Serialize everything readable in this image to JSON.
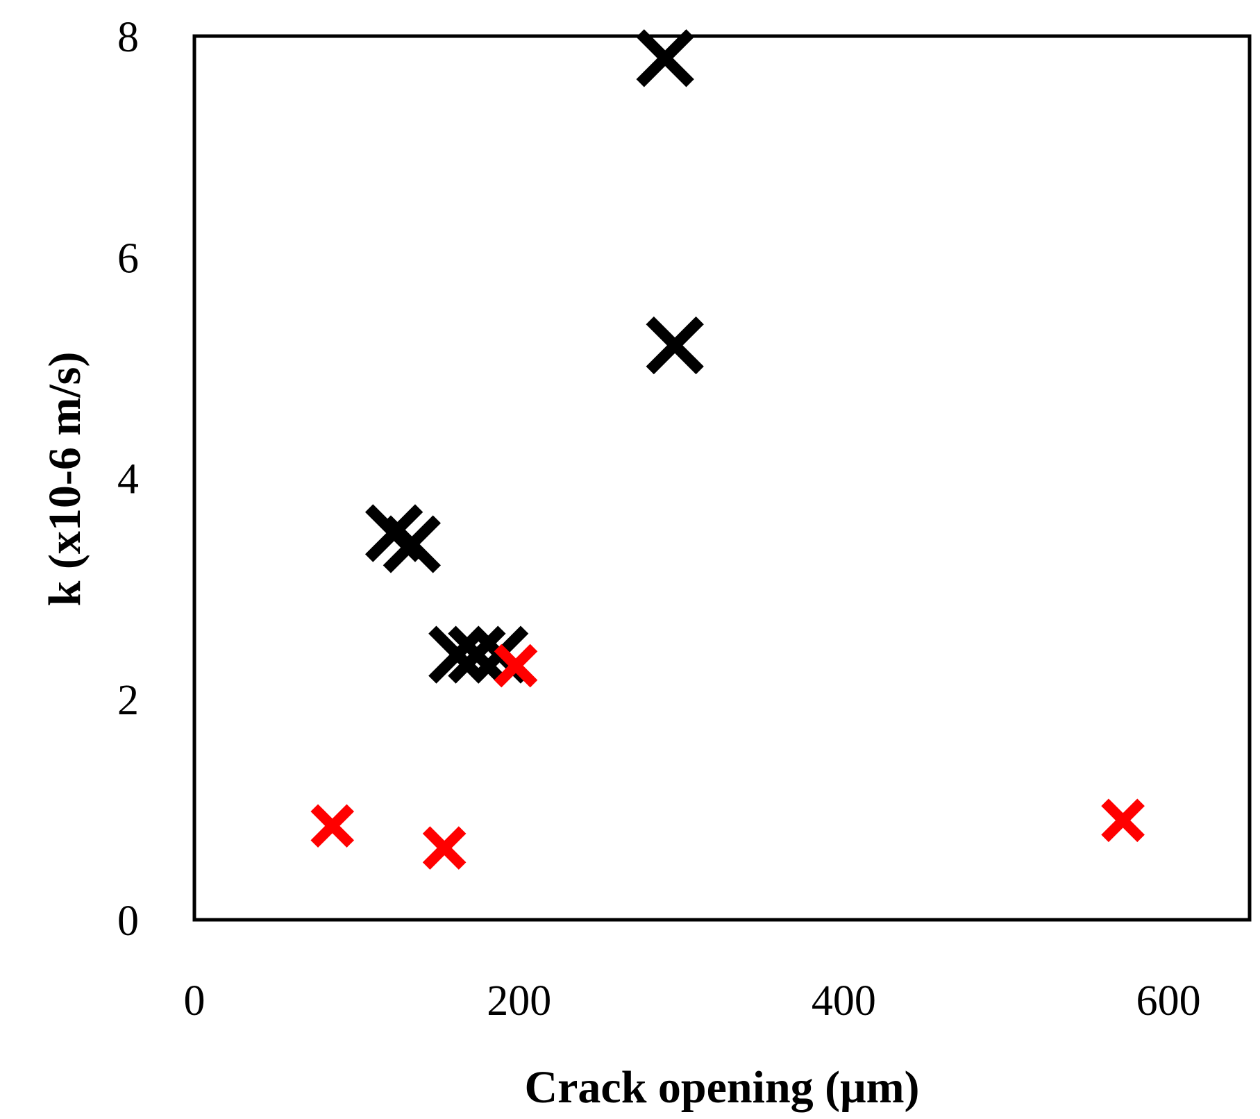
{
  "chart_data": {
    "type": "scatter",
    "title": "",
    "xlabel": "Crack opening (μm)",
    "ylabel": "k (x10-6 m/s)",
    "xlim": [
      0,
      650
    ],
    "ylim": [
      0,
      8
    ],
    "x_ticks": [
      "0",
      "200",
      "400",
      "600"
    ],
    "y_ticks": [
      "0",
      "2",
      "4",
      "6",
      "8"
    ],
    "x_tick_values": [
      0,
      200,
      400,
      600
    ],
    "y_tick_values": [
      0,
      2,
      4,
      6,
      8
    ],
    "grid": false,
    "legend": "none",
    "series": [
      {
        "color": "#000000",
        "marker": "x-large",
        "points": [
          {
            "x": 290,
            "y": 7.8
          },
          {
            "x": 296,
            "y": 5.2
          },
          {
            "x": 123,
            "y": 3.5
          },
          {
            "x": 134,
            "y": 3.4
          },
          {
            "x": 162,
            "y": 2.4
          },
          {
            "x": 174,
            "y": 2.4
          },
          {
            "x": 188,
            "y": 2.4
          }
        ]
      },
      {
        "color": "#ff0000",
        "marker": "x-small",
        "points": [
          {
            "x": 85,
            "y": 0.85
          },
          {
            "x": 154,
            "y": 0.65
          },
          {
            "x": 198,
            "y": 2.3
          },
          {
            "x": 572,
            "y": 0.9
          }
        ]
      }
    ]
  }
}
